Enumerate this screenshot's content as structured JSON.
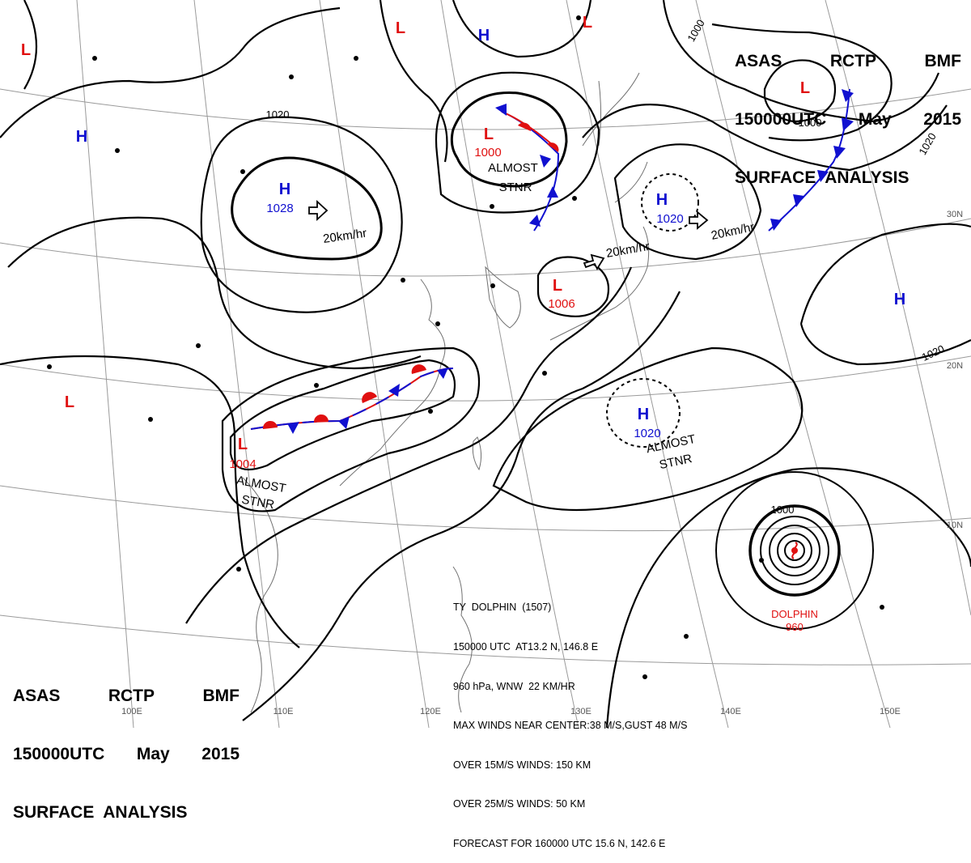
{
  "header_top": {
    "line1": [
      "ASAS",
      "RCTP",
      "BMF"
    ],
    "line2": [
      "150000UTC",
      "May",
      "2015"
    ],
    "line3": "SURFACE  ANALYSIS"
  },
  "header_bottom": {
    "line1": [
      "ASAS",
      "RCTP",
      "BMF"
    ],
    "line2": [
      "150000UTC",
      "May",
      "2015"
    ],
    "line3": "SURFACE  ANALYSIS"
  },
  "typhoon_info": {
    "line1": "TY  DOLPHIN  (1507)",
    "line2": "150000 UTC  AT13.2 N, 146.8 E",
    "line3": "960 hPa, WNW  22 KM/HR",
    "line4": "MAX WINDS NEAR CENTER:38 M/S,GUST 48 M/S",
    "line5": "OVER 15M/S WINDS: 150 KM",
    "line6": "OVER 25M/S WINDS: 50 KM",
    "line7": "FORECAST FOR 160000 UTC 15.6 N, 142.6 E"
  },
  "pressure_centers": [
    {
      "type": "L",
      "pressure": ""
    },
    {
      "type": "L",
      "pressure": ""
    },
    {
      "type": "H",
      "pressure": ""
    },
    {
      "type": "L",
      "pressure": ""
    },
    {
      "type": "H",
      "pressure": ""
    },
    {
      "type": "H",
      "pressure": "1028"
    },
    {
      "type": "L",
      "pressure": "1000"
    },
    {
      "type": "H",
      "pressure": "1020"
    },
    {
      "type": "L",
      "pressure": "1006"
    },
    {
      "type": "L",
      "pressure": ""
    },
    {
      "type": "L",
      "pressure": "1004"
    },
    {
      "type": "H",
      "pressure": "1020"
    },
    {
      "type": "H",
      "pressure": ""
    }
  ],
  "isobar_labels": [
    "1020",
    "1000",
    "1000",
    "1020",
    "1020",
    "1000"
  ],
  "motion_labels": [
    "20km/hr",
    "20km/hr",
    "20km/hr"
  ],
  "stationary_labels": [
    {
      "l1": "ALMOST",
      "l2": "STNR"
    },
    {
      "l1": "ALMOST",
      "l2": "STNR"
    },
    {
      "l1": "ALMOST",
      "l2": "STNR"
    }
  ],
  "typhoon_label": {
    "name": "DOLPHIN",
    "pressure": "960"
  },
  "lon_labels": [
    "100E",
    "110E",
    "120E",
    "130E",
    "140E",
    "150E"
  ],
  "lat_labels": [
    "30N",
    "20N",
    "10N"
  ],
  "colors": {
    "high": "#1010d0",
    "low": "#e01010",
    "warm_front": "#e01010",
    "cold_front": "#1010d0",
    "isobar": "#000000",
    "grid": "#9a9a9a",
    "coast": "#707070"
  }
}
